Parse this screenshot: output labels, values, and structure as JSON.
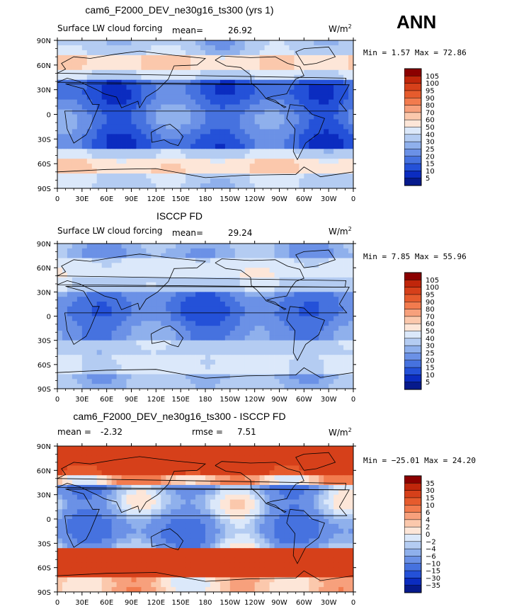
{
  "season": "ANN",
  "chart_data": [
    {
      "type": "heatmap",
      "title": "cam6_F2000_DEV_ne30g16_ts300 (yrs 1)",
      "subtitle": "Surface LW cloud forcing",
      "stat1_label": "mean=",
      "stat1_value": "26.92",
      "stat2_label": "",
      "stat2_value": "",
      "units": "W/m",
      "units_exp": "2",
      "min_max": "Min =   1.57 Max =  72.86",
      "min": 1.57,
      "max": 72.86,
      "mean": 26.92,
      "x_ticks": [
        "0",
        "30E",
        "60E",
        "90E",
        "120E",
        "150E",
        "180",
        "150W",
        "120W",
        "90W",
        "60W",
        "30W",
        "0"
      ],
      "y_ticks": [
        "90N",
        "60N",
        "30N",
        "0",
        "30S",
        "60S",
        "90S"
      ],
      "colorbar_levels": [
        "105",
        "100",
        "95",
        "90",
        "80",
        "70",
        "60",
        "50",
        "40",
        "30",
        "25",
        "20",
        "15",
        "10",
        "5"
      ],
      "colorbar_colors": [
        "#8b0000",
        "#c0260b",
        "#d6401a",
        "#e65b2d",
        "#f27b4e",
        "#f7a07c",
        "#fbc8ac",
        "#fde6d8",
        "#dbe8fa",
        "#b4ccf2",
        "#8fb0ec",
        "#6b91e6",
        "#4672df",
        "#2451d8",
        "#0b2cc0",
        "#061a8c"
      ]
    },
    {
      "type": "heatmap",
      "title": "ISCCP FD",
      "subtitle": "Surface LW cloud forcing",
      "stat1_label": "mean=",
      "stat1_value": "29.24",
      "stat2_label": "",
      "stat2_value": "",
      "units": "W/m",
      "units_exp": "2",
      "min_max": "Min =   7.85 Max =  55.96",
      "min": 7.85,
      "max": 55.96,
      "mean": 29.24,
      "x_ticks": [
        "0",
        "30E",
        "60E",
        "90E",
        "120E",
        "150E",
        "180",
        "150W",
        "120W",
        "90W",
        "60W",
        "30W",
        "0"
      ],
      "y_ticks": [
        "90N",
        "60N",
        "30N",
        "0",
        "30S",
        "60S",
        "90S"
      ],
      "colorbar_levels": [
        "105",
        "100",
        "95",
        "90",
        "80",
        "70",
        "60",
        "50",
        "40",
        "30",
        "25",
        "20",
        "15",
        "10",
        "5"
      ],
      "colorbar_colors": [
        "#8b0000",
        "#c0260b",
        "#d6401a",
        "#e65b2d",
        "#f27b4e",
        "#f7a07c",
        "#fbc8ac",
        "#fde6d8",
        "#dbe8fa",
        "#b4ccf2",
        "#8fb0ec",
        "#6b91e6",
        "#4672df",
        "#2451d8",
        "#0b2cc0",
        "#061a8c"
      ]
    },
    {
      "type": "heatmap",
      "title": "cam6_F2000_DEV_ne30g16_ts300 - ISCCP FD",
      "subtitle": "",
      "stat1_label": "mean =",
      "stat1_value": "-2.32",
      "stat2_label": "rmse =",
      "stat2_value": "7.51",
      "units": "W/m",
      "units_exp": "2",
      "min_max": "Min = −25.01 Max =  24.20",
      "min": -25.01,
      "max": 24.2,
      "mean": -2.32,
      "rmse": 7.51,
      "x_ticks": [
        "0",
        "30E",
        "60E",
        "90E",
        "120E",
        "150E",
        "180",
        "150W",
        "120W",
        "90W",
        "60W",
        "30W",
        "0"
      ],
      "y_ticks": [
        "90N",
        "60N",
        "30N",
        "0",
        "30S",
        "60S",
        "90S"
      ],
      "colorbar_levels": [
        "35",
        "30",
        "15",
        "10",
        "6",
        "4",
        "2",
        "0",
        "−2",
        "−4",
        "−6",
        "−10",
        "−15",
        "−30",
        "−35"
      ],
      "colorbar_colors": [
        "#8b0000",
        "#c0260b",
        "#d6401a",
        "#e65b2d",
        "#f27b4e",
        "#f7a07c",
        "#fbc8ac",
        "#fde6d8",
        "#dbe8fa",
        "#b4ccf2",
        "#8fb0ec",
        "#6b91e6",
        "#4672df",
        "#2451d8",
        "#0b2cc0",
        "#061a8c"
      ]
    }
  ]
}
